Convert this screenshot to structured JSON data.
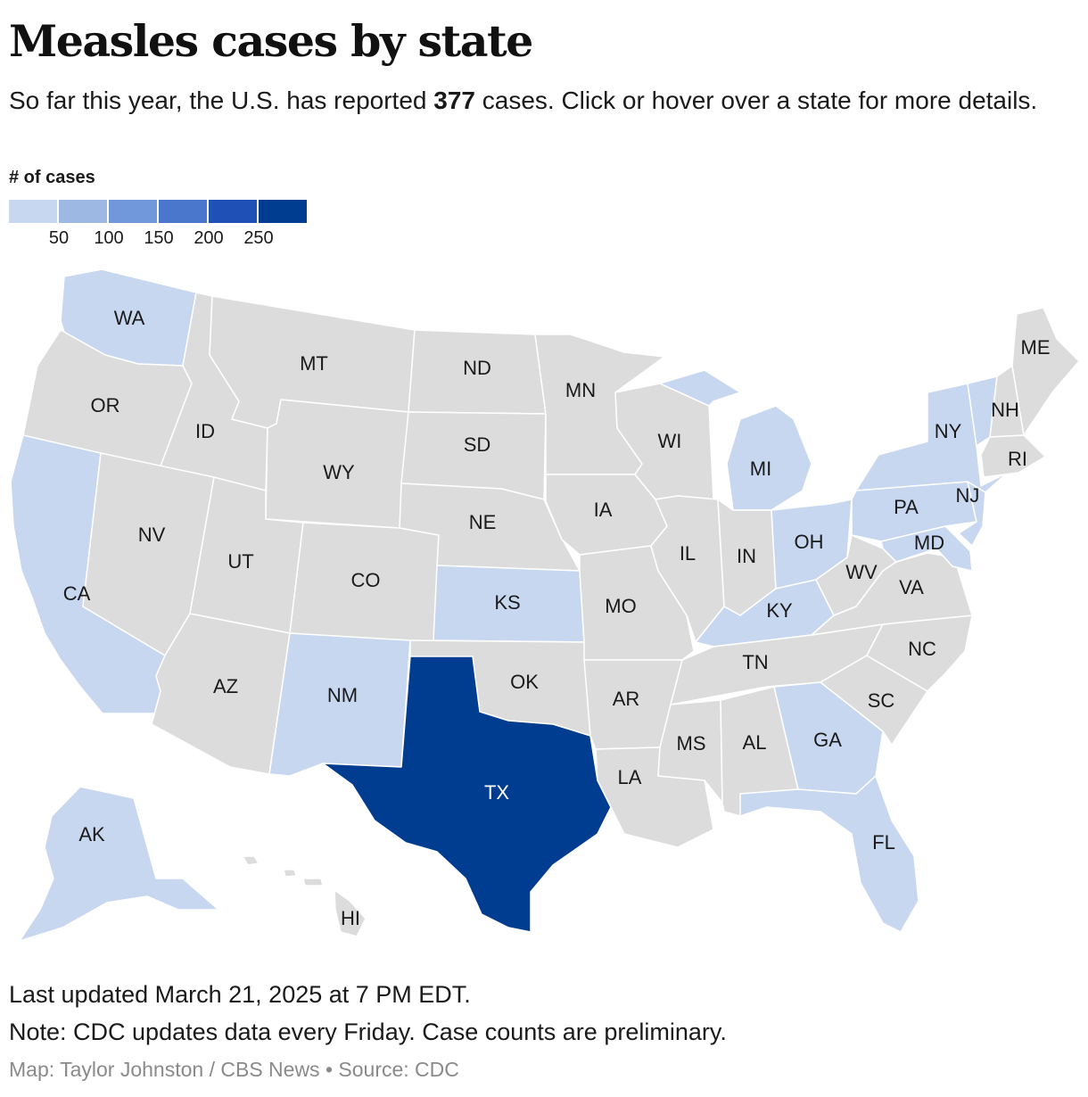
{
  "header": {
    "title": "Measles cases by state",
    "dek_before": "So far this year, the U.S. has reported ",
    "dek_total": "377",
    "dek_after": " cases. Click or hover over a state for more details."
  },
  "legend": {
    "title": "# of cases",
    "colors": [
      "#c7d7f0",
      "#9db8e3",
      "#7198da",
      "#4a76cc",
      "#1e50b5",
      "#003c8f"
    ],
    "ticks": [
      "50",
      "100",
      "150",
      "200",
      "250"
    ]
  },
  "map": {
    "default_fill": "#dcdcdc",
    "stroke": "#ffffff",
    "states": [
      {
        "id": "WA",
        "label": "WA",
        "bin": 1
      },
      {
        "id": "OR",
        "label": "OR",
        "bin": 0
      },
      {
        "id": "CA",
        "label": "CA",
        "bin": 1
      },
      {
        "id": "ID",
        "label": "ID",
        "bin": 0
      },
      {
        "id": "NV",
        "label": "NV",
        "bin": 0
      },
      {
        "id": "MT",
        "label": "MT",
        "bin": 0
      },
      {
        "id": "WY",
        "label": "WY",
        "bin": 0
      },
      {
        "id": "UT",
        "label": "UT",
        "bin": 0
      },
      {
        "id": "AZ",
        "label": "AZ",
        "bin": 0
      },
      {
        "id": "CO",
        "label": "CO",
        "bin": 0
      },
      {
        "id": "NM",
        "label": "NM",
        "bin": 1
      },
      {
        "id": "ND",
        "label": "ND",
        "bin": 0
      },
      {
        "id": "SD",
        "label": "SD",
        "bin": 0
      },
      {
        "id": "NE",
        "label": "NE",
        "bin": 0
      },
      {
        "id": "KS",
        "label": "KS",
        "bin": 1
      },
      {
        "id": "OK",
        "label": "OK",
        "bin": 0
      },
      {
        "id": "TX",
        "label": "TX",
        "bin": 6
      },
      {
        "id": "MN",
        "label": "MN",
        "bin": 0
      },
      {
        "id": "IA",
        "label": "IA",
        "bin": 0
      },
      {
        "id": "MO",
        "label": "MO",
        "bin": 0
      },
      {
        "id": "AR",
        "label": "AR",
        "bin": 0
      },
      {
        "id": "LA",
        "label": "LA",
        "bin": 0
      },
      {
        "id": "WI",
        "label": "WI",
        "bin": 0
      },
      {
        "id": "IL",
        "label": "IL",
        "bin": 0
      },
      {
        "id": "MI",
        "label": "MI",
        "bin": 1
      },
      {
        "id": "IN",
        "label": "IN",
        "bin": 0
      },
      {
        "id": "OH",
        "label": "OH",
        "bin": 1
      },
      {
        "id": "KY",
        "label": "KY",
        "bin": 1
      },
      {
        "id": "TN",
        "label": "TN",
        "bin": 0
      },
      {
        "id": "MS",
        "label": "MS",
        "bin": 0
      },
      {
        "id": "AL",
        "label": "AL",
        "bin": 0
      },
      {
        "id": "GA",
        "label": "GA",
        "bin": 1
      },
      {
        "id": "FL",
        "label": "FL",
        "bin": 1
      },
      {
        "id": "SC",
        "label": "SC",
        "bin": 0
      },
      {
        "id": "NC",
        "label": "NC",
        "bin": 0
      },
      {
        "id": "VA",
        "label": "VA",
        "bin": 0
      },
      {
        "id": "WV",
        "label": "WV",
        "bin": 0
      },
      {
        "id": "MD",
        "label": "MD",
        "bin": 1
      },
      {
        "id": "PA",
        "label": "PA",
        "bin": 1
      },
      {
        "id": "NJ",
        "label": "NJ",
        "bin": 1
      },
      {
        "id": "NY",
        "label": "NY",
        "bin": 1
      },
      {
        "id": "VT",
        "label": "",
        "bin": 1
      },
      {
        "id": "NH",
        "label": "NH",
        "bin": 0
      },
      {
        "id": "ME",
        "label": "ME",
        "bin": 0
      },
      {
        "id": "RI",
        "label": "RI",
        "bin": 0
      },
      {
        "id": "AK",
        "label": "AK",
        "bin": 1
      },
      {
        "id": "HI",
        "label": "HI",
        "bin": 0
      }
    ]
  },
  "footer": {
    "updated": "Last updated March 21, 2025 at 7 PM EDT.",
    "note": "Note: CDC updates data every Friday. Case counts are preliminary.",
    "credit": "Map: Taylor Johnston / CBS News • Source: CDC"
  }
}
